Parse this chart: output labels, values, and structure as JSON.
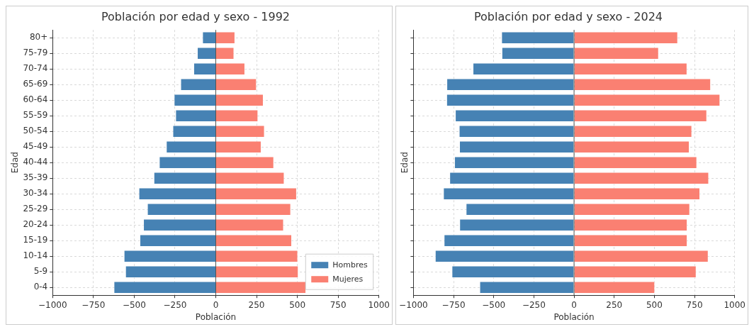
{
  "chart_data": [
    {
      "type": "bar",
      "title": "Población por edad y sexo - 1992",
      "xlabel": "Población",
      "ylabel": "Edad",
      "orientation": "horizontal",
      "stacked": true,
      "categories": [
        "80+",
        "75-79",
        "70-74",
        "65-69",
        "60-64",
        "55-59",
        "50-54",
        "45-49",
        "40-44",
        "35-39",
        "30-34",
        "25-29",
        "20-24",
        "15-19",
        "10-14",
        "5-9",
        "0-4"
      ],
      "series": [
        {
          "name": "Hombres",
          "color": "#4682b4",
          "values": [
            -83,
            -115,
            -137,
            -217,
            -257,
            -248,
            -265,
            -305,
            -348,
            -381,
            -473,
            -421,
            -445,
            -467,
            -564,
            -555,
            -626
          ]
        },
        {
          "name": "Mujeres",
          "color": "#fa8072",
          "values": [
            119,
            113,
            180,
            251,
            293,
            260,
            300,
            280,
            357,
            421,
            497,
            461,
            417,
            467,
            504,
            507,
            554
          ]
        }
      ],
      "xlim": [
        -1000,
        1000
      ],
      "xticks": [
        {
          "value": -1000,
          "label": "−1000"
        },
        {
          "value": -750,
          "label": "−750"
        },
        {
          "value": -500,
          "label": "−500"
        },
        {
          "value": -250,
          "label": "−250"
        },
        0,
        250,
        500,
        750,
        1000
      ],
      "ref_lines": [
        {
          "axis": "x",
          "value": 0,
          "color": "#555555"
        }
      ],
      "grid": true,
      "legend": "bottom right"
    },
    {
      "type": "bar",
      "title": "Población por edad y sexo - 2024",
      "xlabel": "Población",
      "ylabel": "Edad",
      "orientation": "horizontal",
      "stacked": true,
      "categories": [
        null,
        null,
        null,
        null,
        null,
        null,
        null,
        null,
        null,
        null,
        null,
        null,
        null,
        null,
        null,
        null,
        null
      ],
      "series": [
        {
          "color": "#4682b4",
          "values": [
            -453,
            -451,
            -631,
            -794,
            -795,
            -741,
            -717,
            -715,
            -746,
            -776,
            -815,
            -674,
            -714,
            -811,
            -866,
            -762,
            -589
          ]
        },
        {
          "color": "#fa8072",
          "values": [
            647,
            528,
            705,
            852,
            910,
            828,
            735,
            719,
            766,
            840,
            785,
            722,
            706,
            706,
            837,
            762,
            504
          ]
        }
      ],
      "xlim": [
        -1000,
        1000
      ],
      "xticks": [
        {
          "value": -1000,
          "label": "−1000"
        },
        {
          "value": -750,
          "label": "−750"
        },
        {
          "value": -500,
          "label": "−500"
        },
        {
          "value": -250,
          "label": "−250"
        },
        0,
        250,
        500,
        750,
        1000
      ],
      "ref_lines": [
        {
          "axis": "x",
          "value": 0,
          "color": "#555555"
        }
      ],
      "grid": true,
      "tick_labels": "x",
      "legend": false
    }
  ]
}
